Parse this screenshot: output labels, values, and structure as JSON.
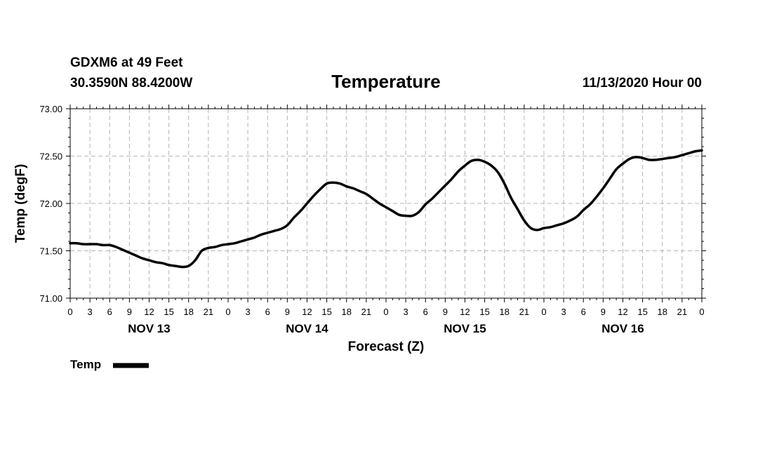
{
  "header": {
    "station": "GDXM6 at 49 Feet",
    "coords": "30.3590N 88.4200W",
    "title": "Temperature",
    "run": "11/13/2020 Hour 00"
  },
  "colors": {
    "line": "#000000",
    "grid": "#b4b4b4",
    "axis": "#000000"
  },
  "chart_data": {
    "type": "line",
    "title": "Temperature",
    "xlabel": "Forecast (Z)",
    "ylabel": "Temp (degF)",
    "ylim": [
      71.0,
      73.0
    ],
    "xlim": [
      0,
      96
    ],
    "yticks": [
      "71.00",
      "71.50",
      "72.00",
      "72.50",
      "73.00"
    ],
    "xtick_labels": [
      "0",
      "3",
      "6",
      "9",
      "12",
      "15",
      "18",
      "21",
      "0",
      "3",
      "6",
      "9",
      "12",
      "15",
      "18",
      "21",
      "0",
      "3",
      "6",
      "9",
      "12",
      "15",
      "18",
      "21",
      "0",
      "3",
      "6",
      "9",
      "12",
      "15",
      "18",
      "21",
      "0"
    ],
    "day_labels": [
      {
        "label": "NOV 13",
        "hour": 12
      },
      {
        "label": "NOV 14",
        "hour": 36
      },
      {
        "label": "NOV 15",
        "hour": 60
      },
      {
        "label": "NOV 16",
        "hour": 84
      }
    ],
    "grid": true,
    "legend": {
      "label": "Temp",
      "placement": "bottom-left"
    },
    "series": [
      {
        "name": "Temp",
        "x": [
          0,
          1,
          2,
          3,
          4,
          5,
          6,
          7,
          8,
          9,
          10,
          11,
          12,
          13,
          14,
          15,
          16,
          17,
          18,
          19,
          20,
          21,
          22,
          23,
          24,
          25,
          26,
          27,
          28,
          29,
          30,
          31,
          32,
          33,
          34,
          35,
          36,
          37,
          38,
          39,
          40,
          41,
          42,
          43,
          44,
          45,
          46,
          47,
          48,
          49,
          50,
          51,
          52,
          53,
          54,
          55,
          56,
          57,
          58,
          59,
          60,
          61,
          62,
          63,
          64,
          65,
          66,
          67,
          68,
          69,
          70,
          71,
          72,
          73,
          74,
          75,
          76,
          77,
          78,
          79,
          80,
          81,
          82,
          83,
          84,
          85,
          86,
          87,
          88,
          89,
          90,
          91,
          92,
          93,
          94,
          95,
          96
        ],
        "y": [
          71.58,
          71.58,
          71.57,
          71.57,
          71.57,
          71.56,
          71.56,
          71.54,
          71.51,
          71.48,
          71.45,
          71.42,
          71.4,
          71.38,
          71.37,
          71.35,
          71.34,
          71.33,
          71.34,
          71.4,
          71.5,
          71.53,
          71.54,
          71.56,
          71.57,
          71.58,
          71.6,
          71.62,
          71.64,
          71.67,
          71.69,
          71.71,
          71.73,
          71.77,
          71.85,
          71.92,
          72.0,
          72.08,
          72.15,
          72.21,
          72.22,
          72.21,
          72.18,
          72.16,
          72.13,
          72.1,
          72.05,
          72.0,
          71.96,
          71.92,
          71.88,
          71.87,
          71.87,
          71.91,
          71.99,
          72.05,
          72.12,
          72.19,
          72.26,
          72.34,
          72.4,
          72.45,
          72.46,
          72.44,
          72.4,
          72.33,
          72.21,
          72.06,
          71.94,
          71.82,
          71.74,
          71.72,
          71.74,
          71.75,
          71.77,
          71.79,
          71.82,
          71.86,
          71.93,
          71.99,
          72.07,
          72.16,
          72.26,
          72.36,
          72.42,
          72.47,
          72.49,
          72.48,
          72.46,
          72.46,
          72.47,
          72.48,
          72.49,
          72.51,
          72.53,
          72.55,
          72.56
        ]
      }
    ]
  }
}
